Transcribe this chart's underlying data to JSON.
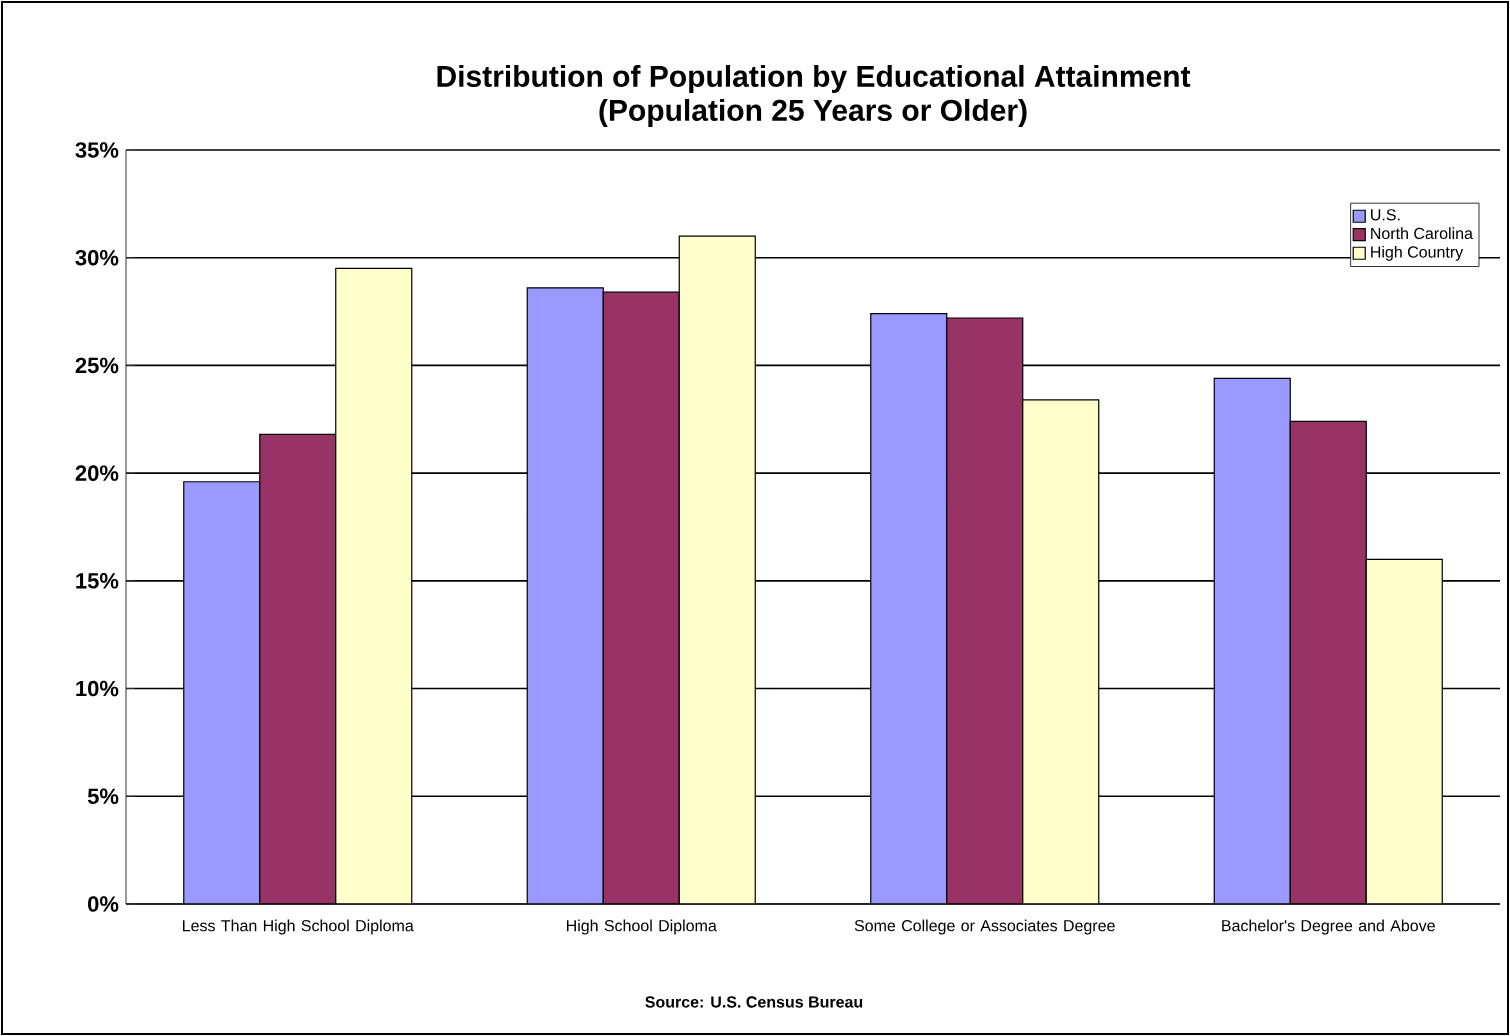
{
  "chart_data": {
    "type": "bar",
    "title": "Distribution of Population by Educational Attainment\n(Population 25 Years or Older)",
    "categories": [
      "Less Than High School Diploma",
      "High School Diploma",
      "Some College or Associates Degree",
      "Bachelor's Degree and Above"
    ],
    "series": [
      {
        "name": "U.S.",
        "color": "#9999ff",
        "values": [
          19.6,
          28.6,
          27.4,
          24.4
        ]
      },
      {
        "name": "North Carolina",
        "color": "#993366",
        "values": [
          21.8,
          28.4,
          27.2,
          22.4
        ]
      },
      {
        "name": "High Country",
        "color": "#ffffcc",
        "values": [
          29.5,
          31.0,
          23.4,
          16.0
        ]
      }
    ],
    "ylim": [
      0,
      35
    ],
    "yticks": [
      {
        "value": 0,
        "label": "0%"
      },
      {
        "value": 5,
        "label": "5%"
      },
      {
        "value": 10,
        "label": "10%"
      },
      {
        "value": 15,
        "label": "15%"
      },
      {
        "value": 20,
        "label": "20%"
      },
      {
        "value": 25,
        "label": "25%"
      },
      {
        "value": 30,
        "label": "30%"
      },
      {
        "value": 35,
        "label": "35%"
      }
    ],
    "grid": "y",
    "legend": "top right",
    "annotations": [
      "Source: U.S. Census Bureau"
    ]
  }
}
